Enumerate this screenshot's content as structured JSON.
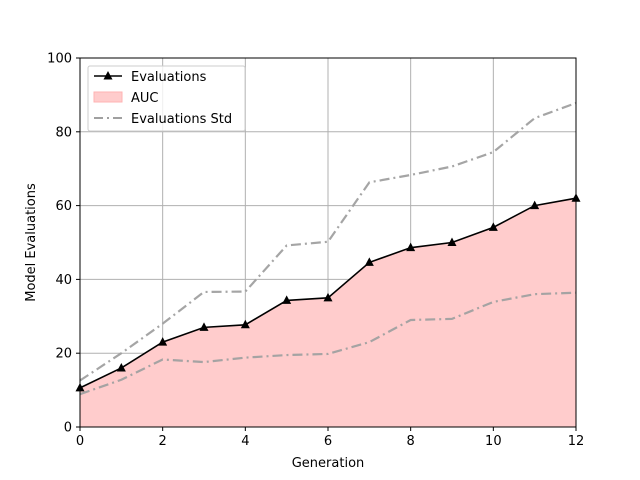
{
  "chart_data": {
    "type": "line",
    "title": "",
    "xlabel": "Generation",
    "ylabel": "Model Evaluations",
    "xlim": [
      0,
      12
    ],
    "ylim": [
      0,
      100
    ],
    "xticks": [
      0,
      2,
      4,
      6,
      8,
      10,
      12
    ],
    "yticks": [
      0,
      20,
      40,
      60,
      80,
      100
    ],
    "grid": true,
    "legend_position": "top-left",
    "x": [
      0,
      1,
      2,
      3,
      4,
      5,
      6,
      7,
      8,
      9,
      10,
      11,
      12
    ],
    "series": [
      {
        "name": "Evaluations",
        "style": "line-with-triangle-markers",
        "color": "#000000",
        "values": [
          10.6,
          16.0,
          23.0,
          27.0,
          27.7,
          34.3,
          35.0,
          44.6,
          48.6,
          50.0,
          54.1,
          60.0,
          62.0
        ]
      },
      {
        "name": "AUC",
        "style": "area-under-evaluations",
        "color": "#ffcccc"
      },
      {
        "name": "Evaluations Std",
        "style": "dash-dot",
        "color": "#a0a0a0",
        "upper": [
          12.6,
          20.0,
          28.0,
          36.6,
          36.7,
          49.2,
          50.2,
          66.3,
          68.3,
          70.6,
          74.5,
          83.7,
          87.8
        ],
        "lower": [
          8.9,
          12.8,
          18.3,
          17.6,
          18.8,
          19.5,
          19.8,
          23.0,
          29.0,
          29.3,
          33.9,
          36.0,
          36.4
        ]
      }
    ]
  }
}
